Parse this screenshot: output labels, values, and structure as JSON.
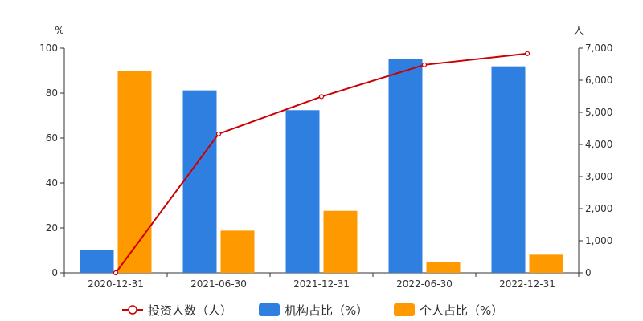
{
  "chart_data": {
    "type": "bar",
    "categories": [
      "2020-12-31",
      "2021-06-30",
      "2021-12-31",
      "2022-06-30",
      "2022-12-31"
    ],
    "y_left": {
      "unit": "%",
      "min": 0,
      "max": 100,
      "ticks": [
        0,
        20,
        40,
        60,
        80,
        100
      ]
    },
    "y_right": {
      "unit": "人",
      "min": 0,
      "max": 7000,
      "ticks": [
        "0",
        "1,000",
        "2,000",
        "3,000",
        "4,000",
        "5,000",
        "6,000",
        "7,000"
      ]
    },
    "series": [
      {
        "name": "机构占比（%）",
        "type": "bar",
        "axis": "left",
        "color": "#2f7fe0",
        "values": [
          10,
          81.2,
          72.4,
          95.3,
          91.9
        ]
      },
      {
        "name": "个人占比（%）",
        "type": "bar",
        "axis": "left",
        "color": "#ff9900",
        "values": [
          90,
          18.8,
          27.6,
          4.7,
          8.1
        ]
      },
      {
        "name": "投资人数（人）",
        "type": "line",
        "axis": "right",
        "color": "#cc0000",
        "values": [
          0,
          4330,
          5490,
          6480,
          6830
        ]
      }
    ],
    "legend_position": "bottom",
    "grid": false
  }
}
